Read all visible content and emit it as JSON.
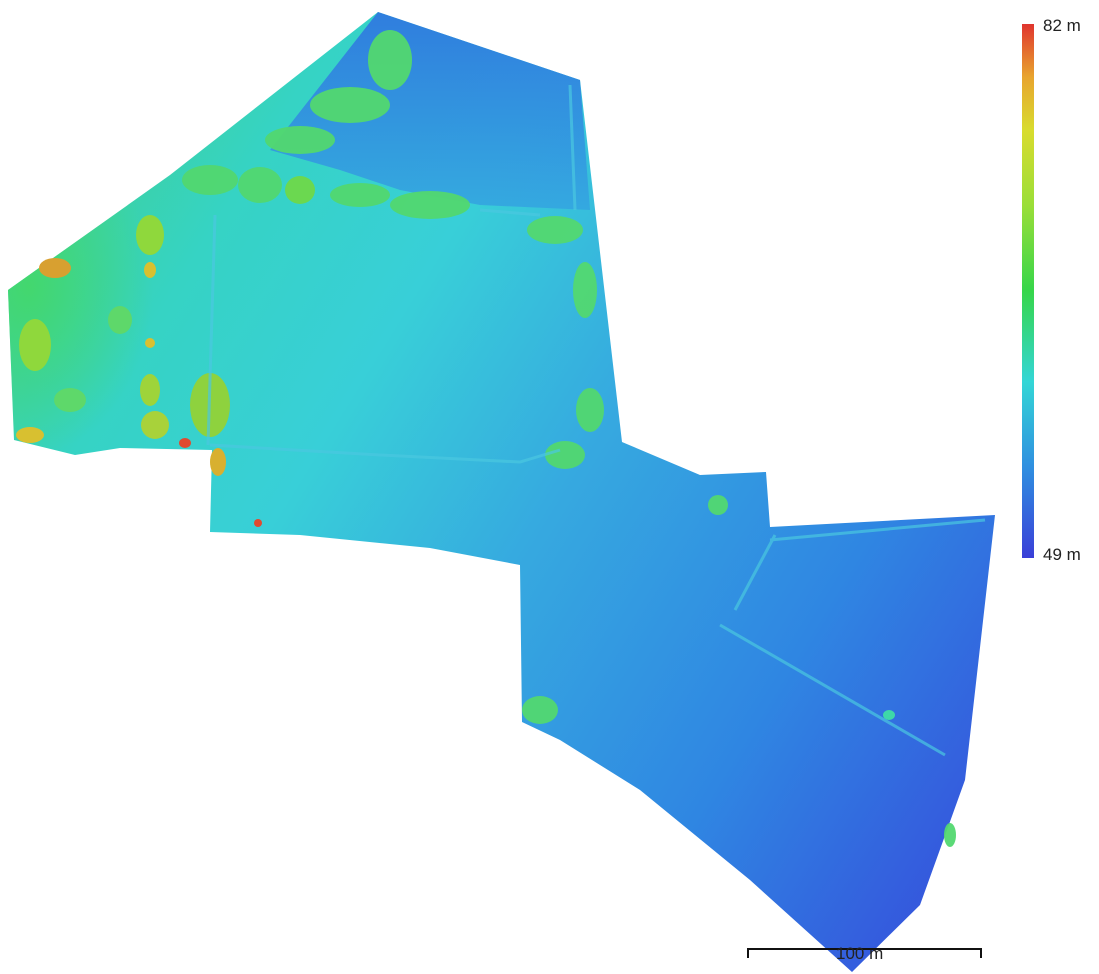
{
  "legend": {
    "max_label": "82 m",
    "min_label": "49 m",
    "max_value": 82,
    "min_value": 49,
    "unit": "m",
    "colors": [
      "#3a3fd8",
      "#2f8fe0",
      "#33d6d6",
      "#36d64a",
      "#d8dc2e",
      "#e8a52e",
      "#e0352e"
    ]
  },
  "scale_bar": {
    "label": "100 m",
    "length_m": 100
  }
}
